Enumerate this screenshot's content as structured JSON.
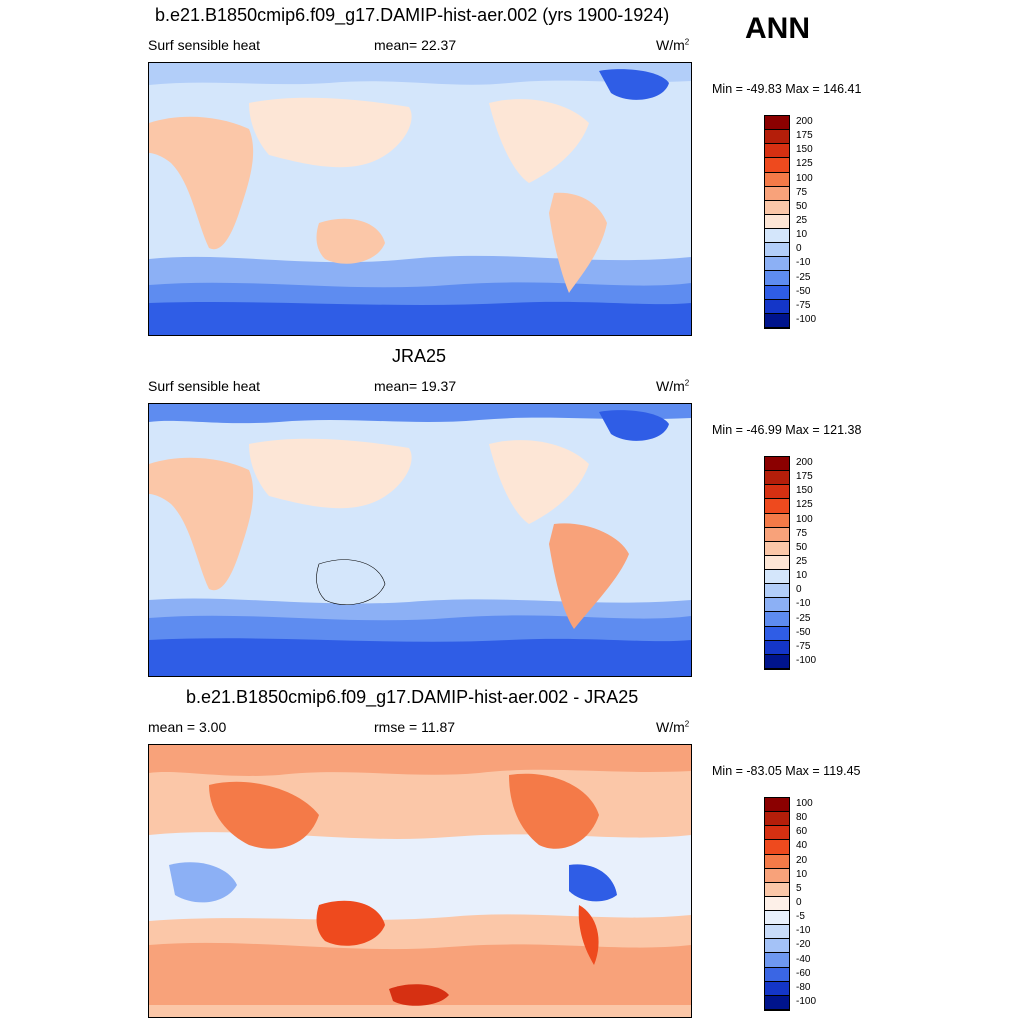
{
  "season": "ANN",
  "panels": [
    {
      "title": "b.e21.B1850cmip6.f09_g17.DAMIP-hist-aer.002 (yrs 1900-1924)",
      "left_text": "Surf sensible heat",
      "mid_text": "mean=  22.37",
      "units": "W/m",
      "units_sup": "2",
      "minmax": "Min = -49.83 Max = 146.41"
    },
    {
      "title": "JRA25",
      "left_text": "Surf sensible heat",
      "mid_text": "mean=  19.37",
      "units": "W/m",
      "units_sup": "2",
      "minmax": "Min = -46.99 Max = 121.38"
    },
    {
      "title": "b.e21.B1850cmip6.f09_g17.DAMIP-hist-aer.002 - JRA25",
      "left_text": "mean =   3.00",
      "mid_text": "rmse =   11.87",
      "units": "W/m",
      "units_sup": "2",
      "minmax": "Min = -83.05 Max = 119.45"
    }
  ],
  "chart_data": [
    {
      "type": "heatmap",
      "title": "b.e21.B1850cmip6.f09_g17.DAMIP-hist-aer.002 (yrs 1900-1924)",
      "variable": "Surf sensible heat",
      "units": "W/m2",
      "mean": 22.37,
      "min": -49.83,
      "max": 146.41,
      "colorbar_levels": [
        "200",
        "175",
        "150",
        "125",
        "100",
        "75",
        "50",
        "25",
        "10",
        "0",
        "-10",
        "-25",
        "-50",
        "-75",
        "-100"
      ],
      "colorbar_colors": [
        "#8b0000",
        "#b41e0a",
        "#d63012",
        "#ee4a1e",
        "#f47a48",
        "#f8a27a",
        "#fbc7a8",
        "#fde6d6",
        "#d4e6fb",
        "#b2cef9",
        "#8cb0f5",
        "#5e8cf0",
        "#2f5de6",
        "#1436c8",
        "#00148c"
      ]
    },
    {
      "type": "heatmap",
      "title": "JRA25",
      "variable": "Surf sensible heat",
      "units": "W/m2",
      "mean": 19.37,
      "min": -46.99,
      "max": 121.38,
      "colorbar_levels": [
        "200",
        "175",
        "150",
        "125",
        "100",
        "75",
        "50",
        "25",
        "10",
        "0",
        "-10",
        "-25",
        "-50",
        "-75",
        "-100"
      ],
      "colorbar_colors": [
        "#8b0000",
        "#b41e0a",
        "#d63012",
        "#ee4a1e",
        "#f47a48",
        "#f8a27a",
        "#fbc7a8",
        "#fde6d6",
        "#d4e6fb",
        "#b2cef9",
        "#8cb0f5",
        "#5e8cf0",
        "#2f5de6",
        "#1436c8",
        "#00148c"
      ]
    },
    {
      "type": "heatmap",
      "title": "b.e21.B1850cmip6.f09_g17.DAMIP-hist-aer.002 - JRA25",
      "units": "W/m2",
      "mean": 3.0,
      "rmse": 11.87,
      "min": -83.05,
      "max": 119.45,
      "colorbar_levels": [
        "100",
        "80",
        "60",
        "40",
        "20",
        "10",
        "5",
        "0",
        "-5",
        "-10",
        "-20",
        "-40",
        "-60",
        "-80",
        "-100"
      ],
      "colorbar_colors": [
        "#8b0000",
        "#b41e0a",
        "#d63012",
        "#ee4a1e",
        "#f47a48",
        "#f8a27a",
        "#fbc7a8",
        "#fdf0e8",
        "#e8f0fc",
        "#c8dcfa",
        "#a4c2f7",
        "#6e98f0",
        "#3a66e4",
        "#1436c8",
        "#00148c"
      ]
    }
  ]
}
